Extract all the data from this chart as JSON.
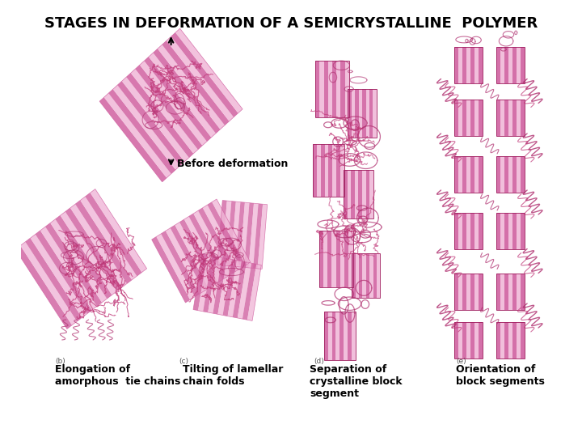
{
  "title": "STAGES IN DEFORMATION OF A SEMICRYSTALLINE  POLYMER",
  "title_fontsize": 13,
  "title_fontweight": "bold",
  "title_color": "#000000",
  "background_color": "#ffffff",
  "label_before": "Before deformation",
  "label_a": "Elongation of\namorphous  tie chains",
  "label_b": "Tilting of lamellar\nchain folds",
  "label_c": "Separation of\ncrystalline block\nsegment",
  "label_d": "Orientation of\nblock segments",
  "fig_width": 7.2,
  "fig_height": 5.4,
  "dpi": 100,
  "panel_bg": "#f0e0ee",
  "crystal_pink": "#d060a0",
  "crystal_light": "#f0b8d8",
  "crystal_dark": "#a02060",
  "amorphous_color": "#c03878",
  "chain_color": "#b03070"
}
